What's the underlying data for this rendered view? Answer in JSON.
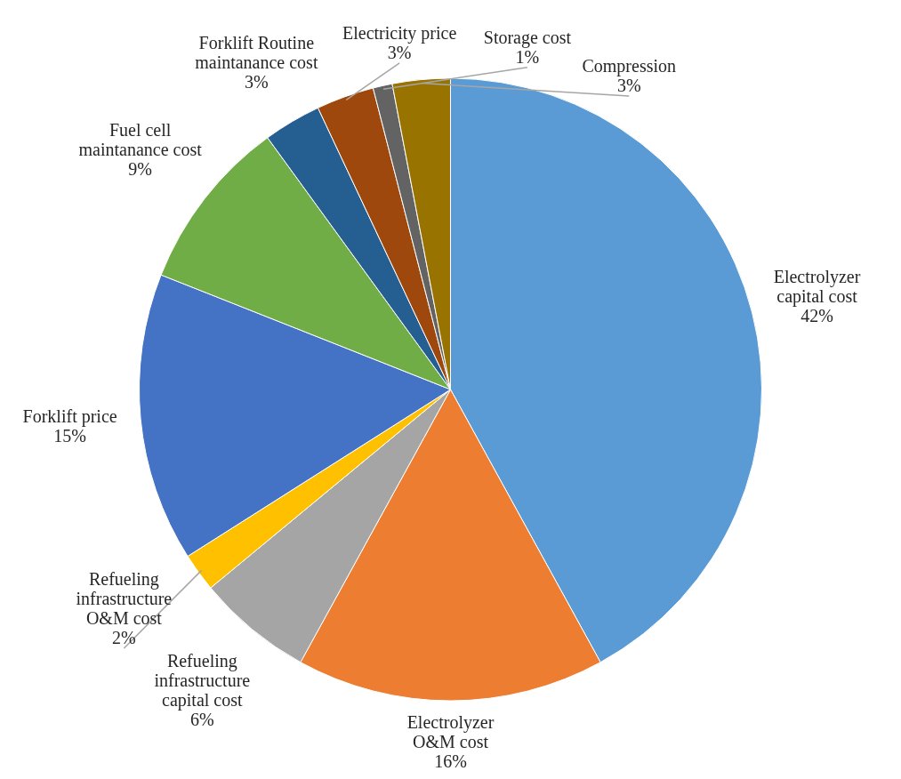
{
  "chart_data": {
    "type": "pie",
    "categories": [
      "Electrolyzer\ncapital cost",
      "Electrolyzer\nO&M cost",
      "Refueling\ninfrastructure\ncapital cost",
      "Refueling\ninfrastructure\nO&M cost",
      "Forklift price",
      "Fuel cell\nmaintanance cost",
      "Forklift Routine\nmaintanance cost",
      "Electricity price",
      "Storage cost",
      "Compression"
    ],
    "values": [
      42,
      16,
      6,
      2,
      15,
      9,
      3,
      3,
      1,
      3
    ],
    "value_labels": [
      "42%",
      "16%",
      "6%",
      "2%",
      "15%",
      "9%",
      "3%",
      "3%",
      "1%",
      "3%"
    ],
    "colors": [
      "#5b9bd5",
      "#ed7d31",
      "#a5a5a5",
      "#ffc000",
      "#4472c4",
      "#70ad47",
      "#255e91",
      "#9e480e",
      "#636363",
      "#997300"
    ]
  }
}
